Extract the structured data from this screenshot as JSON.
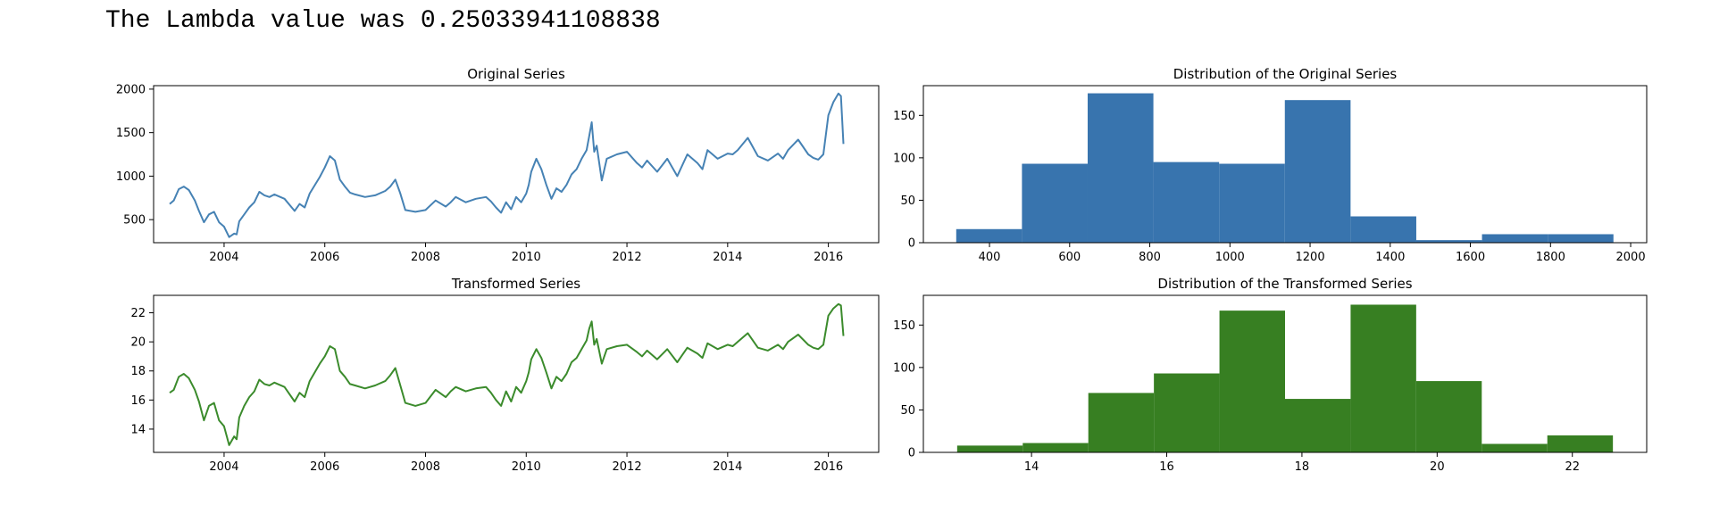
{
  "output": {
    "text": "The Lambda value was 0.25033941108838"
  },
  "chart_data": [
    {
      "type": "line",
      "title": "Original Series",
      "color": "#4682b4",
      "xlim": [
        2002.6,
        2017.0
      ],
      "ylim": [
        235,
        2040
      ],
      "xticks": [
        2004,
        2006,
        2008,
        2010,
        2012,
        2014,
        2016
      ],
      "yticks": [
        500,
        1000,
        1500,
        2000
      ],
      "x": [
        2002.92,
        2003.0,
        2003.1,
        2003.2,
        2003.3,
        2003.42,
        2003.5,
        2003.6,
        2003.7,
        2003.8,
        2003.9,
        2004.0,
        2004.1,
        2004.2,
        2004.25,
        2004.3,
        2004.4,
        2004.5,
        2004.6,
        2004.7,
        2004.8,
        2004.9,
        2005.0,
        2005.2,
        2005.4,
        2005.5,
        2005.6,
        2005.7,
        2005.9,
        2006.0,
        2006.1,
        2006.2,
        2006.3,
        2006.4,
        2006.5,
        2006.6,
        2006.8,
        2007.0,
        2007.2,
        2007.3,
        2007.4,
        2007.5,
        2007.6,
        2007.8,
        2008.0,
        2008.2,
        2008.4,
        2008.5,
        2008.6,
        2008.8,
        2009.0,
        2009.2,
        2009.3,
        2009.4,
        2009.5,
        2009.6,
        2009.7,
        2009.8,
        2009.9,
        2010.0,
        2010.05,
        2010.1,
        2010.2,
        2010.3,
        2010.4,
        2010.5,
        2010.6,
        2010.7,
        2010.8,
        2010.9,
        2011.0,
        2011.1,
        2011.2,
        2011.25,
        2011.3,
        2011.35,
        2011.4,
        2011.5,
        2011.6,
        2011.8,
        2012.0,
        2012.2,
        2012.3,
        2012.4,
        2012.6,
        2012.8,
        2013.0,
        2013.2,
        2013.4,
        2013.5,
        2013.6,
        2013.8,
        2014.0,
        2014.1,
        2014.2,
        2014.4,
        2014.6,
        2014.8,
        2015.0,
        2015.1,
        2015.2,
        2015.4,
        2015.6,
        2015.7,
        2015.8,
        2015.9,
        2016.0,
        2016.1,
        2016.2,
        2016.25,
        2016.3
      ],
      "y": [
        680,
        720,
        850,
        880,
        840,
        720,
        600,
        470,
        560,
        590,
        470,
        420,
        300,
        340,
        330,
        480,
        560,
        640,
        700,
        820,
        780,
        760,
        790,
        740,
        600,
        680,
        640,
        800,
        990,
        1100,
        1230,
        1180,
        960,
        880,
        810,
        790,
        760,
        780,
        830,
        880,
        960,
        800,
        610,
        590,
        610,
        720,
        650,
        700,
        760,
        700,
        740,
        760,
        710,
        640,
        580,
        700,
        620,
        760,
        700,
        800,
        900,
        1050,
        1200,
        1080,
        900,
        740,
        860,
        820,
        900,
        1020,
        1080,
        1200,
        1300,
        1460,
        1620,
        1280,
        1350,
        950,
        1200,
        1250,
        1280,
        1150,
        1100,
        1180,
        1050,
        1200,
        1000,
        1250,
        1150,
        1080,
        1300,
        1200,
        1260,
        1250,
        1300,
        1440,
        1230,
        1180,
        1260,
        1200,
        1300,
        1420,
        1250,
        1210,
        1190,
        1250,
        1700,
        1850,
        1950,
        1920,
        1370
      ],
      "xlabel": "",
      "ylabel": ""
    },
    {
      "type": "bar",
      "title": "Distribution of the Original Series",
      "color": "#3874ae",
      "bin_edges": [
        317,
        481,
        645,
        809,
        973,
        1137,
        1301,
        1465,
        1629,
        1793,
        1957
      ],
      "values": [
        16,
        93,
        176,
        95,
        93,
        168,
        31,
        3,
        10,
        10
      ],
      "xlim": [
        235,
        2040
      ],
      "ylim": [
        0,
        185
      ],
      "xticks": [
        400,
        600,
        800,
        1000,
        1200,
        1400,
        1600,
        1800,
        2000
      ],
      "yticks": [
        0,
        50,
        100,
        150
      ],
      "xlabel": "",
      "ylabel": ""
    },
    {
      "type": "line",
      "title": "Transformed Series",
      "color": "#3b8b2c",
      "xlim": [
        2002.6,
        2017.0
      ],
      "ylim": [
        12.4,
        23.2
      ],
      "xticks": [
        2004,
        2006,
        2008,
        2010,
        2012,
        2014,
        2016
      ],
      "yticks": [
        14,
        16,
        18,
        20,
        22
      ],
      "x": [
        2002.92,
        2003.0,
        2003.1,
        2003.2,
        2003.3,
        2003.42,
        2003.5,
        2003.6,
        2003.7,
        2003.8,
        2003.9,
        2004.0,
        2004.1,
        2004.2,
        2004.25,
        2004.3,
        2004.4,
        2004.5,
        2004.6,
        2004.7,
        2004.8,
        2004.9,
        2005.0,
        2005.2,
        2005.4,
        2005.5,
        2005.6,
        2005.7,
        2005.9,
        2006.0,
        2006.1,
        2006.2,
        2006.3,
        2006.4,
        2006.5,
        2006.6,
        2006.8,
        2007.0,
        2007.2,
        2007.3,
        2007.4,
        2007.5,
        2007.6,
        2007.8,
        2008.0,
        2008.2,
        2008.4,
        2008.5,
        2008.6,
        2008.8,
        2009.0,
        2009.2,
        2009.3,
        2009.4,
        2009.5,
        2009.6,
        2009.7,
        2009.8,
        2009.9,
        2010.0,
        2010.05,
        2010.1,
        2010.2,
        2010.3,
        2010.4,
        2010.5,
        2010.6,
        2010.7,
        2010.8,
        2010.9,
        2011.0,
        2011.1,
        2011.2,
        2011.25,
        2011.3,
        2011.35,
        2011.4,
        2011.5,
        2011.6,
        2011.8,
        2012.0,
        2012.2,
        2012.3,
        2012.4,
        2012.6,
        2012.8,
        2013.0,
        2013.2,
        2013.4,
        2013.5,
        2013.6,
        2013.8,
        2014.0,
        2014.1,
        2014.2,
        2014.4,
        2014.6,
        2014.8,
        2015.0,
        2015.1,
        2015.2,
        2015.4,
        2015.6,
        2015.7,
        2015.8,
        2015.9,
        2016.0,
        2016.1,
        2016.2,
        2016.25,
        2016.3
      ],
      "y": [
        16.5,
        16.7,
        17.6,
        17.8,
        17.5,
        16.7,
        15.9,
        14.6,
        15.6,
        15.8,
        14.6,
        14.2,
        12.9,
        13.5,
        13.3,
        14.8,
        15.6,
        16.2,
        16.6,
        17.4,
        17.1,
        17.0,
        17.2,
        16.9,
        15.9,
        16.5,
        16.2,
        17.3,
        18.5,
        19.0,
        19.7,
        19.5,
        18.0,
        17.6,
        17.1,
        17.0,
        16.8,
        17.0,
        17.3,
        17.7,
        18.2,
        17.0,
        15.8,
        15.6,
        15.8,
        16.7,
        16.2,
        16.6,
        16.9,
        16.6,
        16.8,
        16.9,
        16.5,
        16.0,
        15.6,
        16.6,
        15.9,
        16.9,
        16.5,
        17.3,
        17.9,
        18.8,
        19.5,
        18.9,
        17.9,
        16.8,
        17.6,
        17.3,
        17.8,
        18.6,
        18.9,
        19.5,
        20.1,
        20.9,
        21.4,
        19.8,
        20.2,
        18.5,
        19.5,
        19.7,
        19.8,
        19.3,
        19.0,
        19.4,
        18.8,
        19.5,
        18.6,
        19.6,
        19.2,
        18.9,
        19.9,
        19.5,
        19.8,
        19.7,
        20.0,
        20.6,
        19.6,
        19.4,
        19.8,
        19.5,
        20.0,
        20.5,
        19.8,
        19.6,
        19.5,
        19.8,
        21.8,
        22.3,
        22.6,
        22.5,
        20.4
      ],
      "xlabel": "",
      "ylabel": ""
    },
    {
      "type": "bar",
      "title": "Distribution of the Transformed Series",
      "color": "#377f22",
      "bin_edges": [
        12.9,
        13.87,
        14.84,
        15.81,
        16.78,
        17.75,
        18.72,
        19.69,
        20.66,
        21.63,
        22.6
      ],
      "values": [
        8,
        11,
        70,
        93,
        167,
        63,
        174,
        84,
        10,
        20
      ],
      "xlim": [
        12.4,
        23.1
      ],
      "ylim": [
        0,
        185
      ],
      "xticks": [
        14,
        16,
        18,
        20,
        22
      ],
      "yticks": [
        0,
        50,
        100,
        150
      ],
      "xlabel": "",
      "ylabel": ""
    }
  ]
}
